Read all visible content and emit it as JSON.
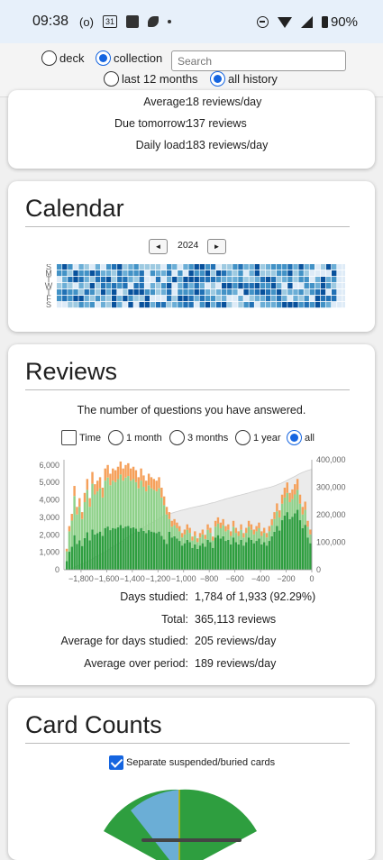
{
  "status_bar": {
    "time": "09:38",
    "icons": [
      "radio-icon",
      "calendar-icon",
      "square-icon",
      "leaf-icon",
      "dot-icon"
    ],
    "calendar_text": "31",
    "battery": "90%"
  },
  "toolbar": {
    "deck_label": "deck",
    "collection_label": "collection",
    "search_placeholder": "Search",
    "last12_label": "last 12 months",
    "allhistory_label": "all history",
    "selected_scope": "collection",
    "selected_range": "all history"
  },
  "future_due": {
    "rows": [
      {
        "label": "Average:",
        "value": "18 reviews/day"
      },
      {
        "label": "Due tomorrow:",
        "value": "137 reviews"
      },
      {
        "label": "Daily load:",
        "value": "183 reviews/day"
      }
    ]
  },
  "calendar": {
    "title": "Calendar",
    "prev_label": "◄",
    "next_label": "►",
    "year": "2024",
    "day_labels": [
      "S",
      "M",
      "T",
      "W",
      "T",
      "F",
      "S"
    ],
    "colors": [
      "#deebf7",
      "#9ecae1",
      "#6baed6",
      "#4292c6",
      "#2171b5",
      "#08519c"
    ]
  },
  "reviews": {
    "title": "Reviews",
    "subtitle": "The number of questions you have answered.",
    "time_label": "Time",
    "range_options": [
      "1 month",
      "3 months",
      "1 year",
      "all"
    ],
    "selected_range": "all",
    "stats": [
      {
        "label": "Days studied:",
        "value": "1,784 of 1,933 (92.29%)"
      },
      {
        "label": "Total:",
        "value": "365,113 reviews"
      },
      {
        "label": "Average for days studied:",
        "value": "205 reviews/day"
      },
      {
        "label": "Average over period:",
        "value": "189 reviews/day"
      }
    ]
  },
  "card_counts": {
    "title": "Card Counts",
    "separate_label": "Separate suspended/buried cards",
    "separate_checked": true
  },
  "chart_data": {
    "type": "bar",
    "title": "",
    "x_ticks": [
      "−1,800",
      "−1,600",
      "−1,400",
      "−1,200",
      "−1,000",
      "−800",
      "−600",
      "−400",
      "−200",
      "0"
    ],
    "y_ticks": [
      "0",
      "1,000",
      "2,000",
      "3,000",
      "4,000",
      "5,000",
      "6,000"
    ],
    "y2_ticks": [
      "0",
      "100,000",
      "200,000",
      "300,000",
      "400,000"
    ],
    "xlim": [
      -1933,
      0
    ],
    "ylim": [
      0,
      6300
    ],
    "y2lim": [
      0,
      400000
    ],
    "series_colors": {
      "mature": "#2e9e3f",
      "young": "#8fd18a",
      "learn": "#f5a05a",
      "cumulative": "#d8d8d8"
    },
    "bin_days": 20,
    "bins_x": [
      -1930,
      -1910,
      -1890,
      -1870,
      -1850,
      -1830,
      -1810,
      -1790,
      -1770,
      -1750,
      -1730,
      -1710,
      -1690,
      -1670,
      -1650,
      -1630,
      -1610,
      -1590,
      -1570,
      -1550,
      -1530,
      -1510,
      -1490,
      -1470,
      -1450,
      -1430,
      -1410,
      -1390,
      -1370,
      -1350,
      -1330,
      -1310,
      -1290,
      -1270,
      -1250,
      -1230,
      -1210,
      -1190,
      -1170,
      -1150,
      -1130,
      -1110,
      -1090,
      -1070,
      -1050,
      -1030,
      -1010,
      -990,
      -970,
      -950,
      -930,
      -910,
      -890,
      -870,
      -850,
      -830,
      -810,
      -790,
      -770,
      -750,
      -730,
      -710,
      -690,
      -670,
      -650,
      -630,
      -610,
      -590,
      -570,
      -550,
      -530,
      -510,
      -490,
      -470,
      -450,
      -430,
      -410,
      -390,
      -370,
      -350,
      -330,
      -310,
      -290,
      -270,
      -250,
      -230,
      -210,
      -190,
      -170,
      -150,
      -130,
      -110,
      -90,
      -70,
      -50,
      -30,
      -10
    ],
    "totals": [
      0,
      1200,
      2500,
      3200,
      4800,
      3600,
      4100,
      3300,
      4400,
      5200,
      4100,
      5600,
      4900,
      5100,
      5300,
      4700,
      5800,
      6000,
      5500,
      5800,
      5700,
      5900,
      6200,
      5800,
      6000,
      6100,
      5800,
      5900,
      5700,
      5300,
      5800,
      5400,
      5100,
      5500,
      5300,
      5200,
      5100,
      5300,
      4700,
      4200,
      3600,
      3300,
      2800,
      2900,
      2700,
      2500,
      2100,
      2300,
      2600,
      2400,
      1900,
      2200,
      1800,
      2100,
      2300,
      2000,
      2600,
      2400,
      1900,
      2800,
      3000,
      2700,
      2900,
      2500,
      2600,
      2200,
      2800,
      2400,
      2200,
      2600,
      2100,
      2400,
      2800,
      2600,
      2300,
      2500,
      2700,
      2200,
      2400,
      2100,
      2500,
      2900,
      3300,
      3800,
      3400,
      4300,
      4700,
      5000,
      4400,
      4600,
      4900,
      5200,
      4300,
      3600,
      3900,
      2800,
      2300
    ],
    "mature_frac": 0.55,
    "learn_frac": 0.12
  }
}
